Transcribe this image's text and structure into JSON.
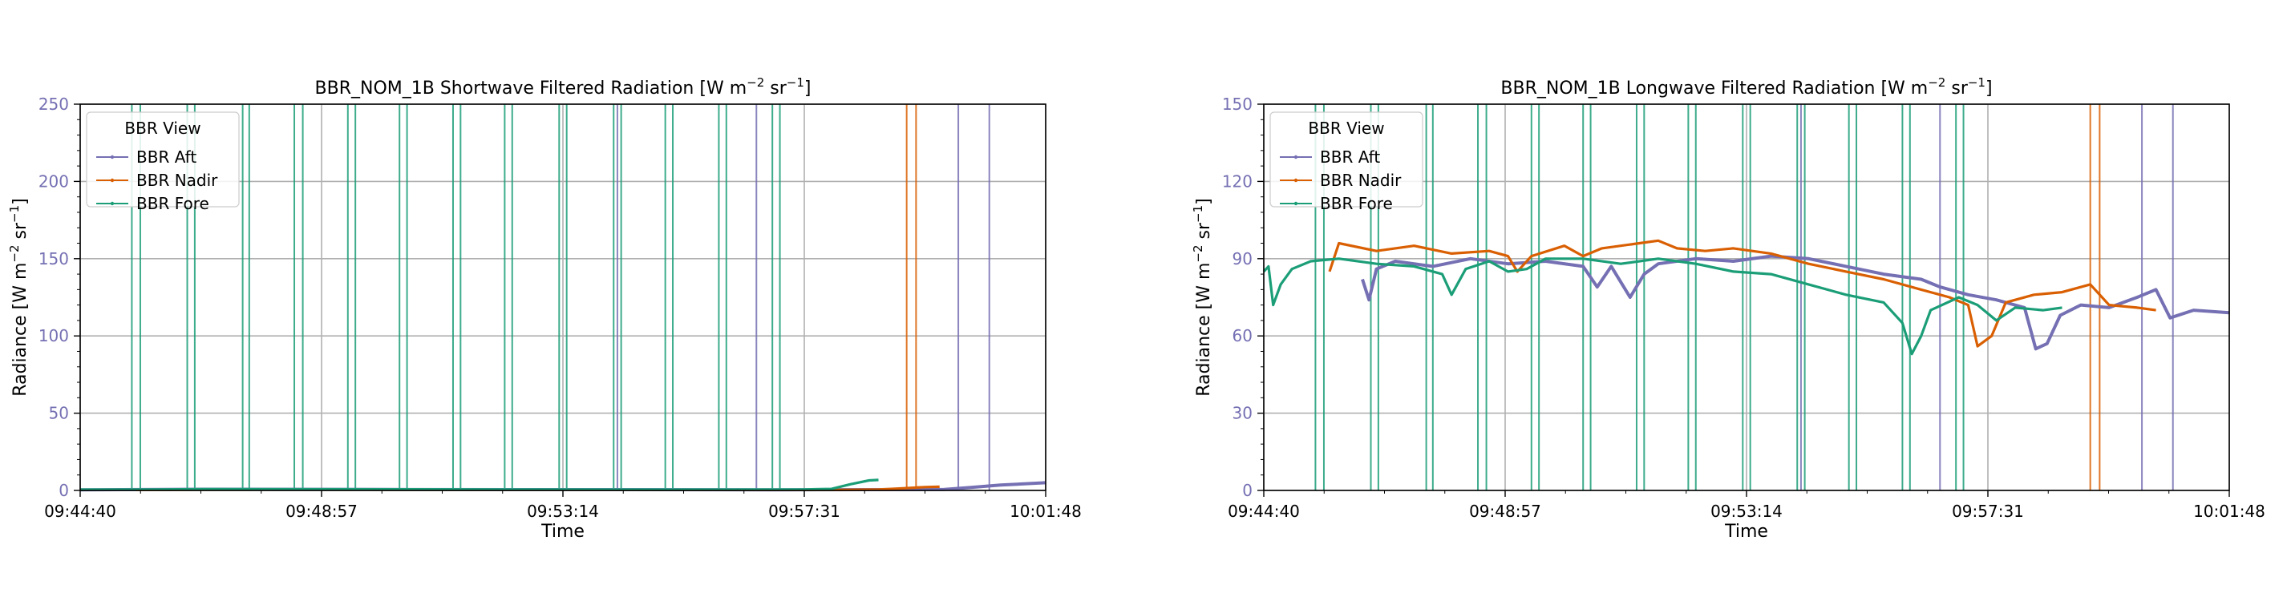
{
  "colors": {
    "aft": "#7570b3",
    "nadir": "#d95f02",
    "fore": "#1b9e77",
    "tick_y": "#7570b3",
    "grid": "#b0b0b0"
  },
  "legend": {
    "title": "BBR View",
    "placement": "upper-left"
  },
  "chart_data": [
    {
      "type": "line",
      "title_main": "BBR_NOM_1B Shortwave Filtered Radiation [W m",
      "title_sup1": "−2",
      "title_mid": " sr",
      "title_sup2": "−1",
      "title_end": "]",
      "xlabel": "Time",
      "ylabel_main": "Radiance [W m",
      "ylabel_sup1": "−2",
      "ylabel_mid": " sr",
      "ylabel_sup2": "−1",
      "ylabel_end": "]",
      "x_ticks": [
        "09:44:40",
        "09:48:57",
        "09:53:14",
        "09:57:31",
        "10:01:48"
      ],
      "y_ticks": [
        "0",
        "50",
        "100",
        "150",
        "200",
        "250"
      ],
      "xlim": [
        "09:44:40",
        "10:01:48"
      ],
      "ylim": [
        0,
        250
      ],
      "grid": true,
      "series": [
        {
          "name": "BBR Aft",
          "key": "aft",
          "points": [
            [
              "09:44:40",
              0.4
            ],
            [
              "09:47:00",
              0.8
            ],
            [
              "09:50:00",
              0.6
            ],
            [
              "09:53:00",
              0.5
            ],
            [
              "09:57:00",
              0.4
            ],
            [
              "10:00:00",
              0.6
            ],
            [
              "10:00:30",
              2
            ],
            [
              "10:01:00",
              3.5
            ],
            [
              "10:01:48",
              5
            ]
          ],
          "spikes": [
            "09:54:12",
            "09:56:40",
            "10:00:15",
            "10:00:48"
          ]
        },
        {
          "name": "BBR Nadir",
          "key": "nadir",
          "points": [
            [
              "09:45:40",
              0.3
            ],
            [
              "09:48:00",
              0.5
            ],
            [
              "09:52:00",
              0.4
            ],
            [
              "09:56:00",
              0.4
            ],
            [
              "09:58:10",
              0.3
            ],
            [
              "09:58:50",
              0.6
            ],
            [
              "09:59:10",
              1.2
            ],
            [
              "09:59:40",
              2.2
            ],
            [
              "09:59:55",
              2.4
            ]
          ],
          "spikes": [
            "09:59:20",
            "09:59:30"
          ]
        },
        {
          "name": "BBR Fore",
          "key": "fore",
          "points": [
            [
              "09:44:40",
              0.5
            ],
            [
              "09:46:00",
              0.6
            ],
            [
              "09:47:00",
              0.9
            ],
            [
              "09:49:00",
              0.8
            ],
            [
              "09:52:00",
              0.6
            ],
            [
              "09:55:00",
              0.5
            ],
            [
              "09:57:30",
              0.6
            ],
            [
              "09:58:00",
              1
            ],
            [
              "09:58:20",
              4
            ],
            [
              "09:58:40",
              6.5
            ],
            [
              "09:58:50",
              6.8
            ]
          ],
          "spikes": [
            "09:45:35",
            "09:45:44",
            "09:46:34",
            "09:46:42",
            "09:47:33",
            "09:47:40",
            "09:48:28",
            "09:48:37",
            "09:49:25",
            "09:49:33",
            "09:50:20",
            "09:50:28",
            "09:51:17",
            "09:51:25",
            "09:52:12",
            "09:52:20",
            "09:53:10",
            "09:53:18",
            "09:54:08",
            "09:54:16",
            "09:55:03",
            "09:55:11",
            "09:56:00",
            "09:56:08",
            "09:56:57",
            "09:57:05"
          ]
        }
      ]
    },
    {
      "type": "line",
      "title_main": "BBR_NOM_1B Longwave Filtered Radiation [W m",
      "title_sup1": "−2",
      "title_mid": " sr",
      "title_sup2": "−1",
      "title_end": "]",
      "xlabel": "Time",
      "ylabel_main": "Radiance [W m",
      "ylabel_sup1": "−2",
      "ylabel_mid": " sr",
      "ylabel_sup2": "−1",
      "ylabel_end": "]",
      "x_ticks": [
        "09:44:40",
        "09:48:57",
        "09:53:14",
        "09:57:31",
        "10:01:48"
      ],
      "y_ticks": [
        "0",
        "30",
        "60",
        "90",
        "120",
        "150"
      ],
      "xlim": [
        "09:44:40",
        "10:01:48"
      ],
      "ylim": [
        0,
        150
      ],
      "grid": true,
      "series": [
        {
          "name": "BBR Aft",
          "key": "aft",
          "points": [
            [
              "09:46:25",
              82
            ],
            [
              "09:46:32",
              74
            ],
            [
              "09:46:40",
              86
            ],
            [
              "09:47:00",
              89
            ],
            [
              "09:47:40",
              87
            ],
            [
              "09:48:20",
              90
            ],
            [
              "09:49:00",
              88
            ],
            [
              "09:49:40",
              89
            ],
            [
              "09:50:20",
              87
            ],
            [
              "09:50:35",
              79
            ],
            [
              "09:50:50",
              87
            ],
            [
              "09:51:10",
              75
            ],
            [
              "09:51:25",
              84
            ],
            [
              "09:51:40",
              88
            ],
            [
              "09:52:20",
              90
            ],
            [
              "09:53:00",
              89
            ],
            [
              "09:53:40",
              91
            ],
            [
              "09:54:20",
              90
            ],
            [
              "09:55:00",
              87
            ],
            [
              "09:55:40",
              84
            ],
            [
              "09:56:20",
              82
            ],
            [
              "09:56:40",
              79
            ],
            [
              "09:57:10",
              76
            ],
            [
              "09:57:40",
              74
            ],
            [
              "09:58:10",
              71
            ],
            [
              "09:58:22",
              55
            ],
            [
              "09:58:34",
              57
            ],
            [
              "09:58:48",
              68
            ],
            [
              "09:59:10",
              72
            ],
            [
              "09:59:40",
              71
            ],
            [
              "10:00:10",
              75
            ],
            [
              "10:00:30",
              78
            ],
            [
              "10:00:45",
              67
            ],
            [
              "10:01:10",
              70
            ],
            [
              "10:01:48",
              69
            ]
          ],
          "spikes": [
            "09:54:12",
            "09:56:40",
            "10:00:15",
            "10:00:48"
          ]
        },
        {
          "name": "BBR Nadir",
          "key": "nadir",
          "points": [
            [
              "09:45:50",
              85
            ],
            [
              "09:46:00",
              96
            ],
            [
              "09:46:40",
              93
            ],
            [
              "09:47:20",
              95
            ],
            [
              "09:48:00",
              92
            ],
            [
              "09:48:40",
              93
            ],
            [
              "09:49:00",
              91
            ],
            [
              "09:49:10",
              85
            ],
            [
              "09:49:25",
              91
            ],
            [
              "09:50:00",
              95
            ],
            [
              "09:50:20",
              91
            ],
            [
              "09:50:40",
              94
            ],
            [
              "09:51:20",
              96
            ],
            [
              "09:51:40",
              97
            ],
            [
              "09:52:00",
              94
            ],
            [
              "09:52:30",
              93
            ],
            [
              "09:53:00",
              94
            ],
            [
              "09:53:40",
              92
            ],
            [
              "09:54:20",
              88
            ],
            [
              "09:55:00",
              85
            ],
            [
              "09:55:40",
              82
            ],
            [
              "09:56:20",
              78
            ],
            [
              "09:56:50",
              75
            ],
            [
              "09:57:10",
              72
            ],
            [
              "09:57:20",
              56
            ],
            [
              "09:57:35",
              60
            ],
            [
              "09:57:50",
              73
            ],
            [
              "09:58:20",
              76
            ],
            [
              "09:58:50",
              77
            ],
            [
              "09:59:20",
              80
            ],
            [
              "09:59:40",
              72
            ],
            [
              "10:00:10",
              71
            ],
            [
              "10:00:30",
              70
            ]
          ],
          "spikes": [
            "09:59:20",
            "09:59:30"
          ]
        },
        {
          "name": "BBR Fore",
          "key": "fore",
          "points": [
            [
              "09:44:40",
              85
            ],
            [
              "09:44:45",
              87
            ],
            [
              "09:44:50",
              72
            ],
            [
              "09:44:58",
              80
            ],
            [
              "09:45:10",
              86
            ],
            [
              "09:45:30",
              89
            ],
            [
              "09:46:00",
              90
            ],
            [
              "09:46:40",
              88
            ],
            [
              "09:47:20",
              87
            ],
            [
              "09:47:50",
              84
            ],
            [
              "09:48:00",
              76
            ],
            [
              "09:48:15",
              86
            ],
            [
              "09:48:40",
              89
            ],
            [
              "09:49:00",
              85
            ],
            [
              "09:49:20",
              86
            ],
            [
              "09:49:40",
              90
            ],
            [
              "09:50:20",
              90
            ],
            [
              "09:51:00",
              88
            ],
            [
              "09:51:40",
              90
            ],
            [
              "09:52:20",
              88
            ],
            [
              "09:53:00",
              85
            ],
            [
              "09:53:40",
              84
            ],
            [
              "09:54:20",
              80
            ],
            [
              "09:55:00",
              76
            ],
            [
              "09:55:40",
              73
            ],
            [
              "09:56:00",
              65
            ],
            [
              "09:56:10",
              53
            ],
            [
              "09:56:20",
              60
            ],
            [
              "09:56:30",
              70
            ],
            [
              "09:57:00",
              75
            ],
            [
              "09:57:20",
              72
            ],
            [
              "09:57:40",
              66
            ],
            [
              "09:58:00",
              71
            ],
            [
              "09:58:30",
              70
            ],
            [
              "09:58:50",
              71
            ]
          ],
          "spikes": [
            "09:45:35",
            "09:45:44",
            "09:46:34",
            "09:46:42",
            "09:47:33",
            "09:47:40",
            "09:48:28",
            "09:48:37",
            "09:49:25",
            "09:49:33",
            "09:50:20",
            "09:50:28",
            "09:51:17",
            "09:51:25",
            "09:52:12",
            "09:52:20",
            "09:53:10",
            "09:53:18",
            "09:54:08",
            "09:54:16",
            "09:55:03",
            "09:55:11",
            "09:56:00",
            "09:56:08",
            "09:56:57",
            "09:57:05"
          ]
        }
      ]
    }
  ]
}
